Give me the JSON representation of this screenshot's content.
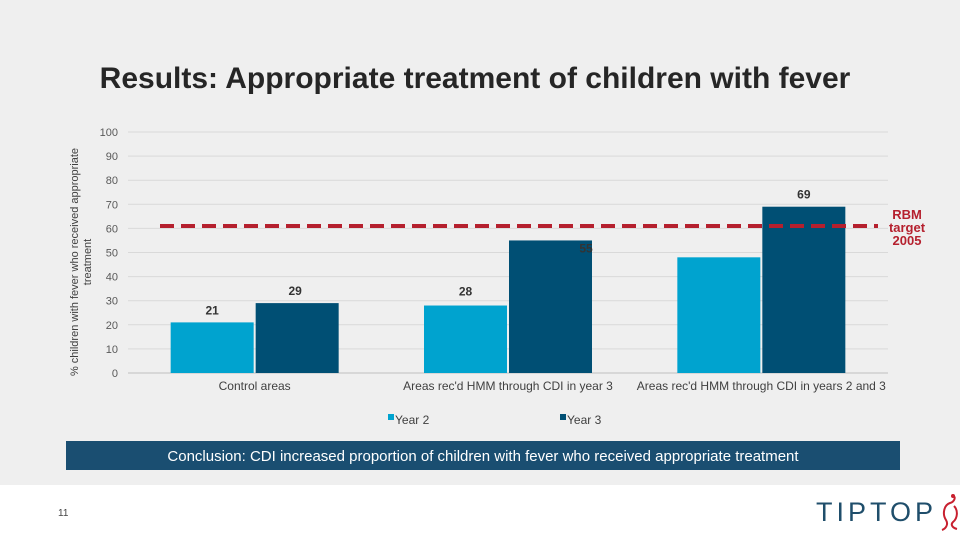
{
  "slide": {
    "title": "Results: Appropriate treatment of children with fever",
    "conclusion": "Conclusion: CDI increased proportion of children with fever who received appropriate treatment",
    "page_number": "11",
    "logo_text": "TIPTOP",
    "colors": {
      "background": "#efefef",
      "conclusion_bg": "#1a4e71",
      "logo_text": "#1f4e6b",
      "logo_mark": "#c8202f"
    }
  },
  "chart_data": {
    "type": "bar",
    "title": "",
    "xlabel": "",
    "ylabel": "% children with fever who received appropriate treatment",
    "ylim": [
      0,
      100
    ],
    "yticks": [
      0,
      10,
      20,
      30,
      40,
      50,
      60,
      70,
      80,
      90,
      100
    ],
    "grid": true,
    "categories": [
      "Control areas",
      "Areas rec'd HMM through CDI in year 3",
      "Areas rec'd HMM through CDI in years 2 and 3"
    ],
    "series": [
      {
        "name": "Year 2",
        "color": "#00a3cf",
        "values": [
          21,
          28,
          48
        ]
      },
      {
        "name": "Year 3",
        "color": "#004f74",
        "values": [
          29,
          55,
          69
        ]
      }
    ],
    "data_labels": [
      [
        "21",
        "28",
        "48"
      ],
      [
        "29",
        "55",
        "69"
      ]
    ],
    "reference_line": {
      "value": 61,
      "label": "RBM target 2005",
      "color": "#b5202e",
      "style": "dashed"
    },
    "legend_position": "bottom"
  }
}
